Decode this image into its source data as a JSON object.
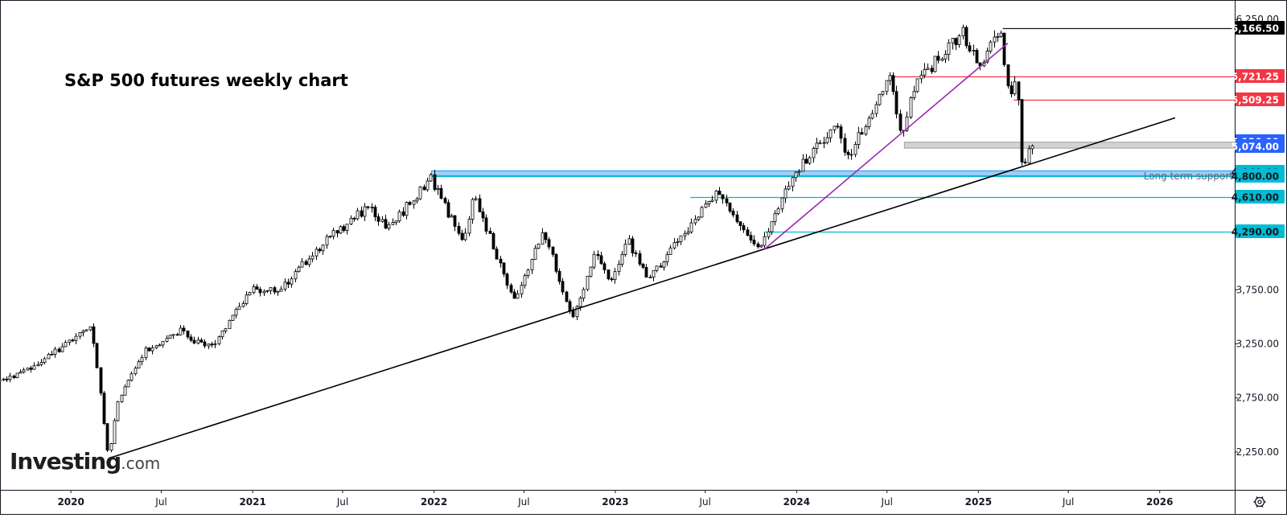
{
  "chart_data": {
    "type": "candlestick",
    "title": "S&P 500 futures weekly chart",
    "brand": {
      "name": "Investing",
      "suffix": ".com"
    },
    "xlim": [
      "2019-06-01",
      "2026-06-01"
    ],
    "ylim": [
      1900,
      6400
    ],
    "price_ticks": [
      "6,250.00",
      "3,750.00",
      "3,250.00",
      "2,750.00",
      "2,250.00"
    ],
    "time_ticks": [
      {
        "label": "Jul",
        "date": "2019-07-01",
        "year": false
      },
      {
        "label": "2020",
        "date": "2020-01-01",
        "year": true
      },
      {
        "label": "Jul",
        "date": "2020-07-01",
        "year": false
      },
      {
        "label": "2021",
        "date": "2021-01-01",
        "year": true
      },
      {
        "label": "Jul",
        "date": "2021-07-01",
        "year": false
      },
      {
        "label": "2022",
        "date": "2022-01-01",
        "year": true
      },
      {
        "label": "Jul",
        "date": "2022-07-01",
        "year": false
      },
      {
        "label": "2023",
        "date": "2023-01-01",
        "year": true
      },
      {
        "label": "Jul",
        "date": "2023-07-01",
        "year": false
      },
      {
        "label": "2024",
        "date": "2024-01-01",
        "year": true
      },
      {
        "label": "Jul",
        "date": "2024-07-01",
        "year": false
      },
      {
        "label": "2025",
        "date": "2025-01-01",
        "year": true
      },
      {
        "label": "Jul",
        "date": "2025-07-01",
        "year": false
      },
      {
        "label": "2026",
        "date": "2026-01-01",
        "year": true
      }
    ],
    "price_path": [
      [
        "2019-06-01",
        2880
      ],
      [
        "2019-08-01",
        2860
      ],
      [
        "2019-10-01",
        2980
      ],
      [
        "2019-12-01",
        3150
      ],
      [
        "2020-01-20",
        3330
      ],
      [
        "2020-02-19",
        3390
      ],
      [
        "2020-03-01",
        3000
      ],
      [
        "2020-03-23",
        2200
      ],
      [
        "2020-04-10",
        2700
      ],
      [
        "2020-06-08",
        3200
      ],
      [
        "2020-08-15",
        3380
      ],
      [
        "2020-09-23",
        3250
      ],
      [
        "2020-10-28",
        3280
      ],
      [
        "2020-12-31",
        3740
      ],
      [
        "2021-03-04",
        3760
      ],
      [
        "2021-06-01",
        4200
      ],
      [
        "2021-09-01",
        4530
      ],
      [
        "2021-10-04",
        4300
      ],
      [
        "2021-12-31",
        4780
      ],
      [
        "2022-03-08",
        4180
      ],
      [
        "2022-03-29",
        4630
      ],
      [
        "2022-06-17",
        3640
      ],
      [
        "2022-08-16",
        4300
      ],
      [
        "2022-10-13",
        3500
      ],
      [
        "2022-12-01",
        4100
      ],
      [
        "2022-12-28",
        3800
      ],
      [
        "2023-02-02",
        4200
      ],
      [
        "2023-03-13",
        3850
      ],
      [
        "2023-07-31",
        4640
      ],
      [
        "2023-10-27",
        4120
      ],
      [
        "2023-12-31",
        4820
      ],
      [
        "2024-03-28",
        5290
      ],
      [
        "2024-04-19",
        4980
      ],
      [
        "2024-07-16",
        5720
      ],
      [
        "2024-08-05",
        5140
      ],
      [
        "2024-09-01",
        5650
      ],
      [
        "2024-12-06",
        6130
      ],
      [
        "2025-01-13",
        5810
      ],
      [
        "2025-02-19",
        6166
      ],
      [
        "2025-03-13",
        5510
      ],
      [
        "2025-03-25",
        5790
      ],
      [
        "2025-04-07",
        4800
      ],
      [
        "2025-04-21",
        5120
      ]
    ],
    "levels": [
      {
        "price": 6166.5,
        "label": "6,166.50",
        "line": "#131722",
        "bg": "#000000",
        "fg": "#ffffff",
        "start": "2025-02-19"
      },
      {
        "price": 5721.25,
        "label": "5,721.25",
        "line": "#f23645",
        "bg": "#f23645",
        "fg": "#ffffff",
        "start": "2024-07-16"
      },
      {
        "price": 5509.25,
        "label": "5,509.25",
        "line": "#f23645",
        "bg": "#f23645",
        "fg": "#ffffff",
        "start": "2025-03-13"
      },
      {
        "price": 5120.0,
        "label": "5,120.00",
        "line": "",
        "bg": "#2962ff",
        "fg": "#ffffff",
        "start": ""
      },
      {
        "price": 5074.0,
        "label": "5,074.00",
        "line": "",
        "bg": "#2962ff",
        "fg": "#ffffff",
        "start": ""
      },
      {
        "price": 4840.0,
        "label": "4,840.00",
        "line": "",
        "bg": "#00bcd4",
        "fg": "#131722",
        "start": ""
      },
      {
        "price": 4800.0,
        "label": "4,800.00",
        "line": "#00bcd4",
        "bg": "#00bcd4",
        "fg": "#131722",
        "start": "2021-12-27"
      },
      {
        "price": 4610.0,
        "label": "4,610.00",
        "line": "#00bcd4",
        "bg": "#00bcd4",
        "fg": "#131722",
        "start": "2023-06-01"
      },
      {
        "price": 4290.0,
        "label": "4,290.00",
        "line": "#00bcd4",
        "bg": "#00bcd4",
        "fg": "#131722",
        "start": "2023-10-27"
      }
    ],
    "zones": [
      {
        "start": "2024-08-05",
        "top": 5115,
        "bottom": 5060,
        "color": "#9e9e9e"
      },
      {
        "start": "2021-12-27",
        "top": 4850,
        "bottom": 4805,
        "color": "#2196f3"
      }
    ],
    "trendlines": [
      {
        "from": [
          "2020-03-23",
          2200
        ],
        "to": [
          "2026-02-01",
          5340
        ],
        "color": "#000000"
      },
      {
        "from": [
          "2023-10-27",
          4120
        ],
        "to": [
          "2025-03-01",
          6030
        ],
        "color": "#9c27b0"
      }
    ],
    "annotation": {
      "text": "Long term support",
      "price": 4800
    }
  }
}
